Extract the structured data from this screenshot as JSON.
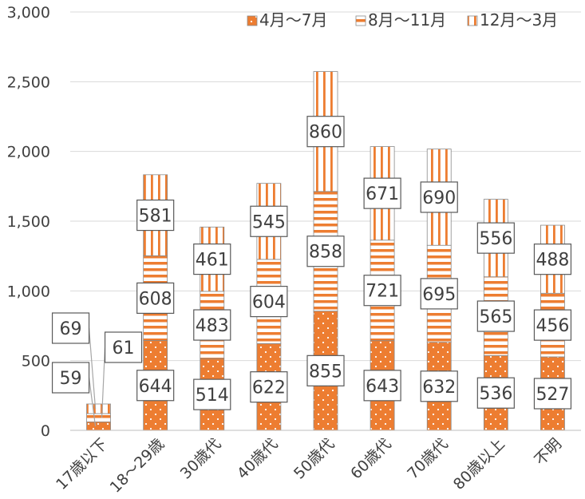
{
  "chart_data": {
    "type": "bar",
    "stacked": true,
    "categories": [
      "17歳以下",
      "18～29歳",
      "30歳代",
      "40歳代",
      "50歳代",
      "60歳代",
      "70歳代",
      "80歳以上",
      "不明"
    ],
    "series": [
      {
        "name": "4月～7月",
        "values": [
          59,
          644,
          514,
          622,
          855,
          643,
          632,
          536,
          527
        ],
        "color": "#ED7D31",
        "pattern": "dots"
      },
      {
        "name": "8月～11月",
        "values": [
          61,
          608,
          483,
          604,
          858,
          721,
          695,
          565,
          456
        ],
        "color": "#ED7D31",
        "pattern": "horizontal-stripes"
      },
      {
        "name": "12月～3月",
        "values": [
          69,
          581,
          461,
          545,
          860,
          671,
          690,
          556,
          488
        ],
        "color": "#ED7D31",
        "pattern": "vertical-stripes"
      }
    ],
    "ylim": [
      0,
      3000
    ],
    "yticks": [
      0,
      500,
      1000,
      1500,
      2000,
      2500,
      3000
    ],
    "ytick_labels": [
      "0",
      "500",
      "1,000",
      "1,500",
      "2,000",
      "2,500",
      "3,000"
    ],
    "grid": true,
    "legend_position": "top-right",
    "title": "",
    "xlabel": "",
    "ylabel": ""
  }
}
